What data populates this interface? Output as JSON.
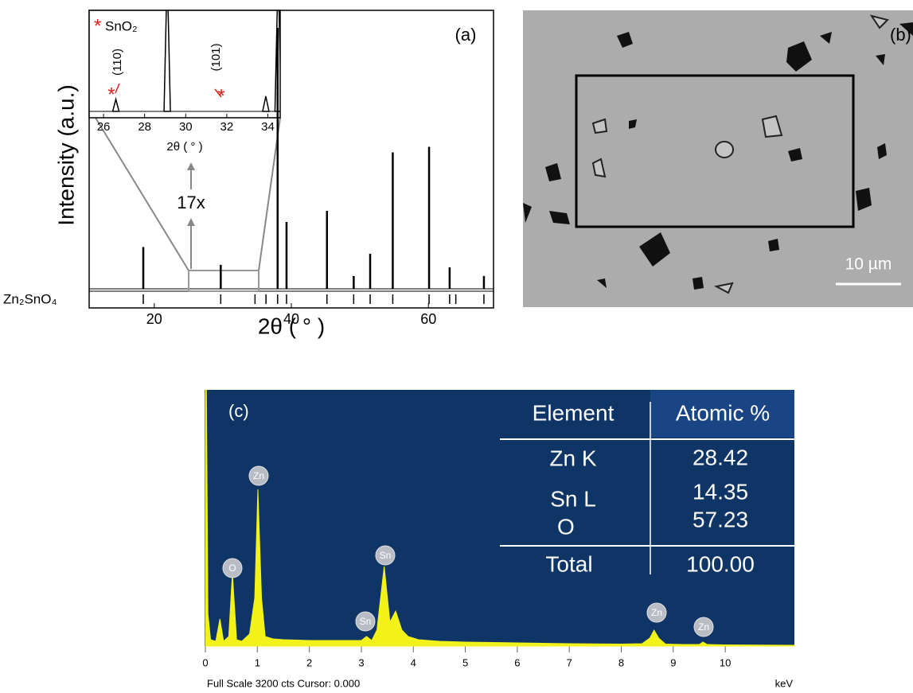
{
  "chart_data": [
    {
      "type": "xrd",
      "panel_label": "(a)",
      "x_label": "2θ ( ° )",
      "y_label": "Intensity (a.u.)",
      "xlim": [
        10.5,
        69.5
      ],
      "xticks": [
        20,
        40,
        60
      ],
      "ylim": [
        0,
        100
      ],
      "color": "#000000",
      "x": [
        18.4,
        29.7,
        38.0,
        39.3,
        45.2,
        49.1,
        51.5,
        54.8,
        60.1,
        63.1,
        68.1
      ],
      "values": [
        15,
        8.6,
        93.7,
        24,
        28,
        4.6,
        12.6,
        49,
        51,
        7.7,
        4.6
      ],
      "reference": {
        "name": "Zn₂SnO₄",
        "x": [
          18.4,
          29.7,
          34.7,
          36.3,
          38.0,
          39.3,
          45.2,
          49.1,
          51.5,
          54.8,
          60.1,
          63.1,
          64.0,
          68.1
        ]
      },
      "magnification": "17x",
      "inset": {
        "xlim": [
          25.3,
          34.6
        ],
        "xticks": [
          26,
          28,
          30,
          32,
          34
        ],
        "x_label": "2θ ( ° )",
        "ylim": [
          0,
          10
        ],
        "x": [
          26.6,
          29.1,
          33.9,
          34.5
        ],
        "values": [
          1.2,
          14,
          1.5,
          14
        ],
        "legend_marker": "*",
        "legend_label": "SnO₂",
        "marker_color": "#e0201b",
        "peak_labels": [
          "(110)",
          "(101)"
        ],
        "markers": [
          "*",
          "*"
        ]
      }
    },
    {
      "type": "image",
      "panel_label": "(b)",
      "scale_bar": "10 µm"
    },
    {
      "type": "spectrum",
      "panel_label": "(c)",
      "color": "#f2f21a",
      "xlim": [
        0,
        11.33
      ],
      "ylim": [
        0,
        3200
      ],
      "xticks": [
        0,
        1,
        2,
        3,
        4,
        5,
        6,
        7,
        8,
        9,
        10
      ],
      "x_unit": "keV",
      "footer": "Full Scale 3200 cts Cursor: 0.000",
      "x": [
        0,
        0.02,
        0.05,
        0.1,
        0.2,
        0.28,
        0.35,
        0.45,
        0.52,
        0.6,
        0.7,
        0.85,
        0.95,
        1.01,
        1.08,
        1.15,
        1.3,
        1.5,
        2,
        2.5,
        3.0,
        3.1,
        3.2,
        3.3,
        3.44,
        3.55,
        3.66,
        3.78,
        3.9,
        4.1,
        4.5,
        5,
        6,
        7,
        8,
        8.4,
        8.55,
        8.63,
        8.72,
        8.85,
        9.2,
        9.5,
        9.57,
        9.65,
        10,
        11.33
      ],
      "values": [
        3200,
        3200,
        400,
        80,
        60,
        338,
        60,
        120,
        914,
        80,
        60,
        150,
        600,
        1958,
        600,
        120,
        90,
        80,
        70,
        70,
        70,
        120,
        70,
        200,
        994,
        300,
        437,
        200,
        120,
        80,
        60,
        50,
        40,
        30,
        25,
        30,
        100,
        199,
        100,
        25,
        20,
        20,
        50,
        20,
        15,
        10
      ],
      "peak_labels": [
        "O",
        "Zn",
        "Sn",
        "Sn",
        "Zn",
        "Zn"
      ],
      "table": {
        "columns": [
          "Element",
          "Atomic %"
        ],
        "rows": [
          [
            "Zn K",
            "28.42"
          ],
          [
            "Sn L",
            "14.35"
          ],
          [
            "O",
            "57.23"
          ]
        ],
        "total": [
          "Total",
          "100.00"
        ]
      }
    }
  ]
}
